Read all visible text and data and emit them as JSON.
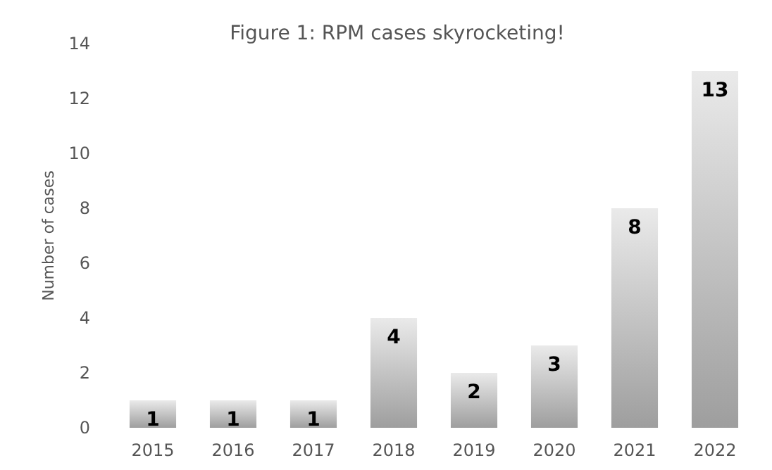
{
  "chart_data": {
    "type": "bar",
    "title": "Figure 1: RPM cases skyrocketing!",
    "ylabel": "Number of cases",
    "categories": [
      "2015",
      "2016",
      "2017",
      "2018",
      "2019",
      "2020",
      "2021",
      "2022"
    ],
    "values": [
      1,
      1,
      1,
      4,
      2,
      3,
      8,
      13
    ],
    "color": "#c4c4c4",
    "ylim": [
      0,
      14
    ],
    "yticks": [
      0,
      2,
      4,
      6,
      8,
      10,
      12,
      14
    ],
    "grid": false,
    "data_labels": true
  }
}
